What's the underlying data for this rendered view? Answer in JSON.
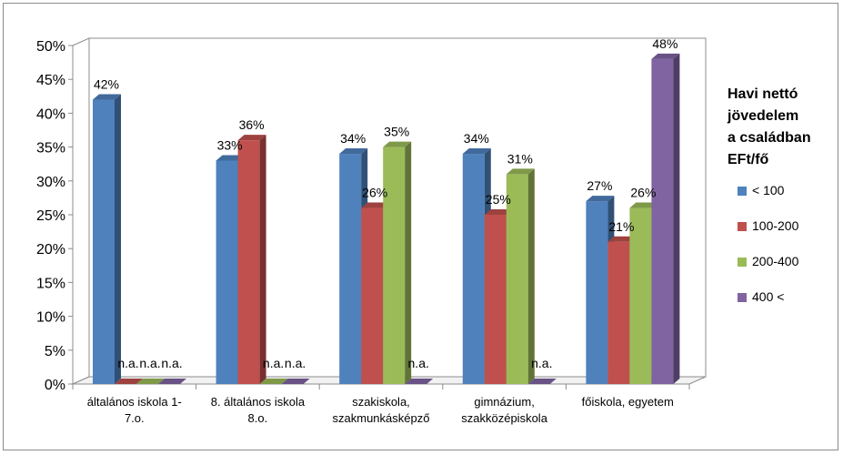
{
  "chart_data": {
    "type": "bar",
    "title": "",
    "xlabel": "",
    "ylabel": "",
    "ylim": [
      0,
      50
    ],
    "ytick_step": 5,
    "ytick_format": "percent",
    "grid": false,
    "style": "3d-clustered-column",
    "legend_position": "right",
    "legend_title_lines": [
      "Havi nettó",
      "jövedelem",
      "a családban",
      "EFt/fő"
    ],
    "categories": [
      [
        "általános iskola 1-",
        "7.o."
      ],
      [
        "8. általános iskola",
        "8.o."
      ],
      [
        "szakiskola,",
        "szakmunkásképző"
      ],
      [
        "gimnázium,",
        "szakközépiskola"
      ],
      [
        "főiskola, egyetem"
      ]
    ],
    "series": [
      {
        "name": "< 100",
        "color": "#4f81bd",
        "values": [
          42,
          33,
          34,
          34,
          27
        ],
        "labels": [
          "42%",
          "33%",
          "34%",
          "34%",
          "27%"
        ]
      },
      {
        "name": "100-200",
        "color": "#c0504d",
        "values": [
          0,
          36,
          26,
          25,
          21
        ],
        "labels": [
          "n.a.",
          "36%",
          "26%",
          "25%",
          "21%"
        ]
      },
      {
        "name": "200-400",
        "color": "#9bbb59",
        "values": [
          0,
          0,
          35,
          31,
          26
        ],
        "labels": [
          "n.a.",
          "n.a.",
          "35%",
          "31%",
          "26%"
        ]
      },
      {
        "name": "400 <",
        "color": "#8064a2",
        "values": [
          0,
          0,
          0,
          0,
          48
        ],
        "labels": [
          "n.a.",
          "n.a.",
          "n.a.",
          "n.a.",
          "48%"
        ]
      }
    ]
  }
}
